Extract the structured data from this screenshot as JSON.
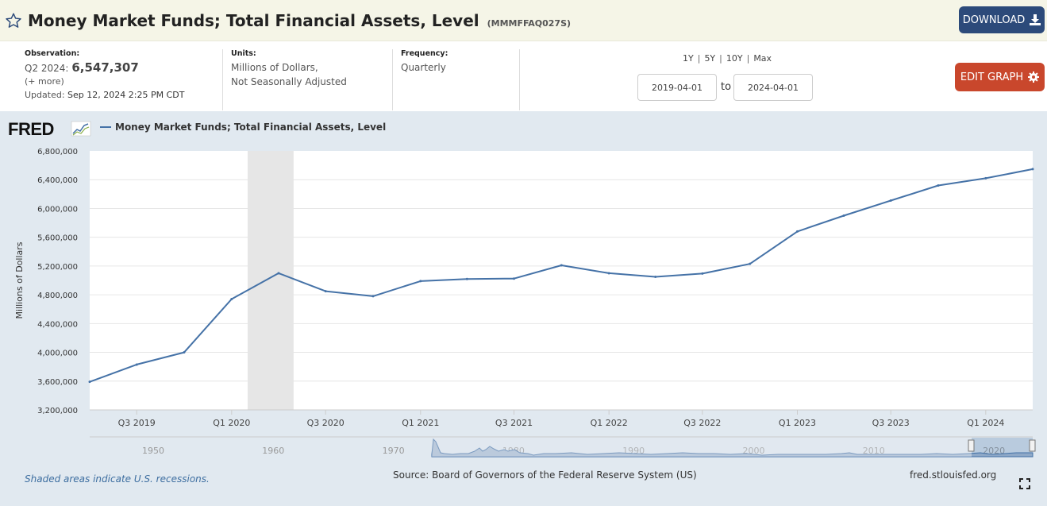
{
  "header": {
    "title": "Money Market Funds; Total Financial Assets, Level",
    "series_id": "(MMMFFAQ027S)",
    "download_label": "DOWNLOAD"
  },
  "observation": {
    "label": "Observation:",
    "period": "Q2 2024:",
    "value": "6,547,307",
    "more": "(+ more)",
    "updated_label": "Updated:",
    "updated": "Sep 12, 2024 2:25 PM CDT"
  },
  "units": {
    "label": "Units:",
    "line1": "Millions of Dollars,",
    "line2": "Not Seasonally Adjusted"
  },
  "frequency": {
    "label": "Frequency:",
    "value": "Quarterly"
  },
  "range": {
    "links": [
      "1Y",
      "5Y",
      "10Y",
      "Max"
    ],
    "start": "2019-04-01",
    "end": "2024-04-01",
    "to_label": "to"
  },
  "edit_label": "EDIT GRAPH",
  "legend_label": "Money Market Funds; Total Financial Assets, Level",
  "footer": {
    "recession_note": "Shaded areas indicate U.S. recessions.",
    "source": "Source: Board of Governors of the Federal Reserve System (US)",
    "url": "fred.stlouisfed.org"
  },
  "colors": {
    "series": "#4572a7",
    "recession": "#e6e6e6",
    "panel": "#e1e9f0",
    "download": "#2c4a7a",
    "edit": "#c9472c"
  },
  "chart_data": {
    "type": "line",
    "title": "Money Market Funds; Total Financial Assets, Level",
    "ylabel": "Millions of Dollars",
    "xlabel": "",
    "ylim": [
      3200000,
      6800000
    ],
    "yticks": [
      3200000,
      3600000,
      4000000,
      4400000,
      4800000,
      5200000,
      5600000,
      6000000,
      6400000,
      6800000
    ],
    "ytick_labels": [
      "3,200,000",
      "3,600,000",
      "4,000,000",
      "4,400,000",
      "4,800,000",
      "5,200,000",
      "5,600,000",
      "6,000,000",
      "6,400,000",
      "6,800,000"
    ],
    "x": [
      "2019-04-01",
      "2019-07-01",
      "2019-10-01",
      "2020-01-01",
      "2020-04-01",
      "2020-07-01",
      "2020-10-01",
      "2021-01-01",
      "2021-04-01",
      "2021-07-01",
      "2021-10-01",
      "2022-01-01",
      "2022-04-01",
      "2022-07-01",
      "2022-10-01",
      "2023-01-01",
      "2023-04-01",
      "2023-07-01",
      "2023-10-01",
      "2024-01-01",
      "2024-04-01"
    ],
    "values": [
      3590000,
      3830000,
      4000000,
      4740000,
      5100000,
      4850000,
      4780000,
      4990000,
      5020000,
      5025000,
      5210000,
      5100000,
      5050000,
      5095000,
      5230000,
      5680000,
      5900000,
      6110000,
      6320000,
      6420000,
      6547307
    ],
    "xtick_labels": [
      "Q3 2019",
      "Q1 2020",
      "Q3 2020",
      "Q1 2021",
      "Q3 2021",
      "Q1 2022",
      "Q3 2022",
      "Q1 2023",
      "Q3 2023",
      "Q1 2024"
    ],
    "xtick_dates": [
      "2019-07-01",
      "2020-01-01",
      "2020-07-01",
      "2021-01-01",
      "2021-07-01",
      "2022-01-01",
      "2022-07-01",
      "2023-01-01",
      "2023-07-01",
      "2024-01-01"
    ],
    "recessions": [
      [
        "2020-02-01",
        "2020-04-30"
      ]
    ],
    "grid": true,
    "legend": "top-left",
    "navigator_ticks": [
      "1950",
      "1960",
      "1970",
      "1980",
      "1990",
      "2000",
      "2010",
      "2020"
    ]
  }
}
